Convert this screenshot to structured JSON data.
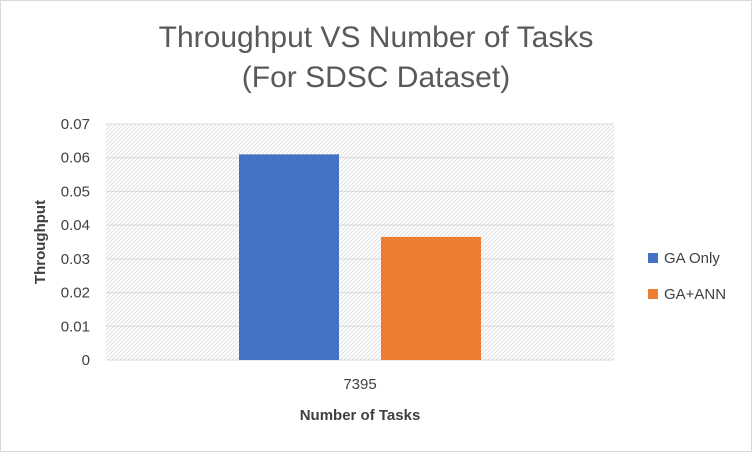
{
  "chart_data": {
    "type": "bar",
    "title_line1": "Throughput VS Number of Tasks",
    "title_line2": "(For SDSC Dataset)",
    "xlabel": "Number of Tasks",
    "ylabel": "Throughput",
    "categories": [
      "7395"
    ],
    "series": [
      {
        "name": "GA Only",
        "values": [
          0.061
        ],
        "color": "#4472c4"
      },
      {
        "name": "GA+ANN",
        "values": [
          0.0365
        ],
        "color": "#ed7d31"
      }
    ],
    "ylim": [
      0,
      0.07
    ],
    "yticks": [
      "0",
      "0.01",
      "0.02",
      "0.03",
      "0.04",
      "0.05",
      "0.06",
      "0.07"
    ],
    "grid": true,
    "legend_position": "right"
  }
}
